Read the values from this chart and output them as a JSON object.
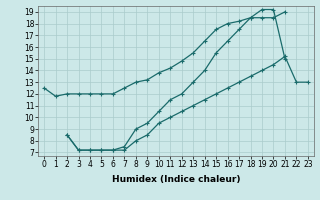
{
  "title": "",
  "xlabel": "Humidex (Indice chaleur)",
  "bg_color": "#cce8e8",
  "grid_color": "#aacccc",
  "line_color": "#1a6b6b",
  "xlim": [
    -0.5,
    23.5
  ],
  "ylim": [
    6.7,
    19.5
  ],
  "xticks": [
    0,
    1,
    2,
    3,
    4,
    5,
    6,
    7,
    8,
    9,
    10,
    11,
    12,
    13,
    14,
    15,
    16,
    17,
    18,
    19,
    20,
    21,
    22,
    23
  ],
  "yticks": [
    7,
    8,
    9,
    10,
    11,
    12,
    13,
    14,
    15,
    16,
    17,
    18,
    19
  ],
  "line1_x": [
    0,
    1,
    2,
    3,
    4,
    5,
    6,
    7,
    8,
    9,
    10,
    11,
    12,
    13,
    14,
    15,
    16,
    17,
    18,
    19,
    20,
    21
  ],
  "line1_y": [
    12.5,
    11.8,
    12.0,
    12.0,
    12.0,
    12.0,
    12.0,
    12.5,
    13.0,
    13.2,
    13.8,
    14.2,
    14.8,
    15.5,
    16.5,
    17.5,
    18.0,
    18.2,
    18.5,
    18.5,
    18.5,
    19.0
  ],
  "line2_x": [
    2,
    3,
    4,
    5,
    6,
    7,
    8,
    9,
    10,
    11,
    12,
    13,
    14,
    15,
    16,
    17,
    18,
    19,
    20,
    21
  ],
  "line2_y": [
    8.5,
    7.2,
    7.2,
    7.2,
    7.2,
    7.5,
    9.0,
    9.5,
    10.5,
    11.5,
    12.0,
    13.0,
    14.0,
    15.5,
    16.5,
    17.5,
    18.5,
    19.2,
    19.2,
    15.0
  ],
  "line3_x": [
    2,
    3,
    4,
    5,
    6,
    7,
    8,
    9,
    10,
    11,
    12,
    13,
    14,
    15,
    16,
    17,
    18,
    19,
    20,
    21,
    22,
    23
  ],
  "line3_y": [
    8.5,
    7.2,
    7.2,
    7.2,
    7.2,
    7.2,
    8.0,
    8.5,
    9.5,
    10.0,
    10.5,
    11.0,
    11.5,
    12.0,
    12.5,
    13.0,
    13.5,
    14.0,
    14.5,
    15.2,
    13.0,
    13.0
  ],
  "marker": "+",
  "markersize": 3.5,
  "linewidth": 0.9,
  "fontsize_label": 6.5,
  "fontsize_tick": 5.5
}
